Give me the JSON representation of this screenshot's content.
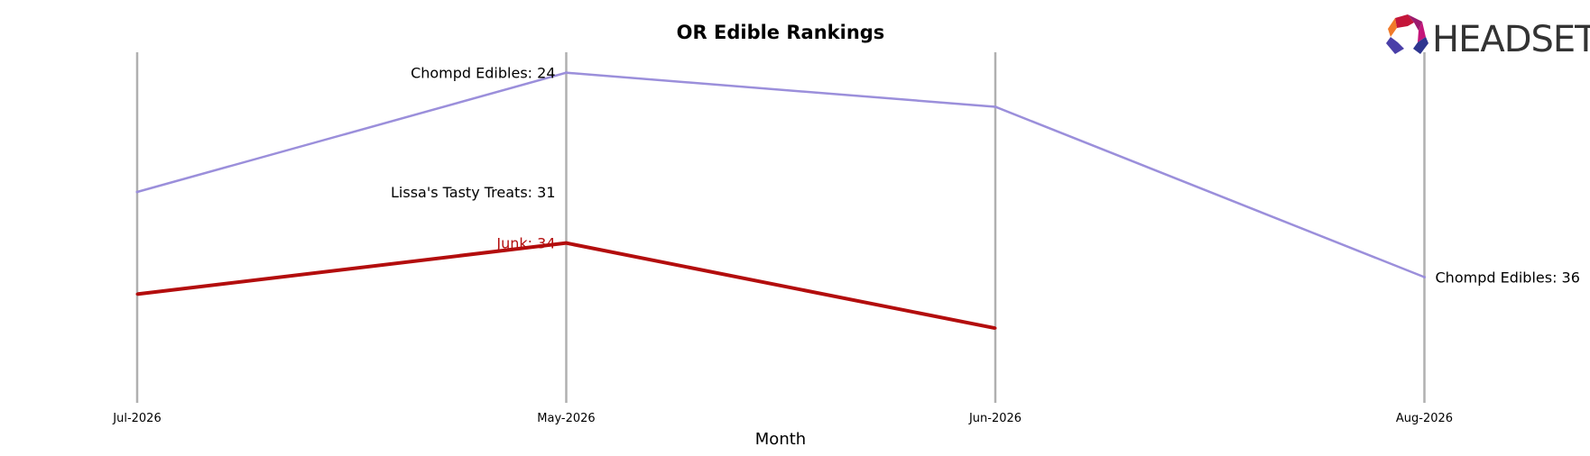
{
  "chart_data": {
    "type": "line",
    "title": "OR Edible Rankings",
    "xlabel": "Month",
    "ylabel": "",
    "x": [
      "Jul-2026",
      "May-2026",
      "Jun-2026",
      "Aug-2026"
    ],
    "y_axis_inverted": true,
    "grid": "vertical lines at each month",
    "series": [
      {
        "name": "Chompd Edibles",
        "color": "#9b8fdb",
        "values": [
          31,
          24,
          26,
          36
        ]
      },
      {
        "name": "Junk",
        "color": "#b30d0d",
        "values": [
          37,
          34,
          39,
          null
        ]
      }
    ],
    "annotations": [
      {
        "text": "Chompd Edibles: 24",
        "x": "May-2026",
        "value": 24,
        "side": "left",
        "color": "#000000"
      },
      {
        "text": "Lissa's Tasty Treats: 31",
        "x": "May-2026",
        "value": 31,
        "side": "left",
        "color": "#000000"
      },
      {
        "text": "Junk: 34",
        "x": "May-2026",
        "value": 34,
        "side": "left",
        "color": "#b30d0d"
      },
      {
        "text": "Chompd Edibles: 36",
        "x": "Aug-2026",
        "value": 36,
        "side": "right",
        "color": "#000000"
      }
    ]
  },
  "logo": {
    "text": "HEADSET",
    "icon": "headset-logo-icon"
  }
}
